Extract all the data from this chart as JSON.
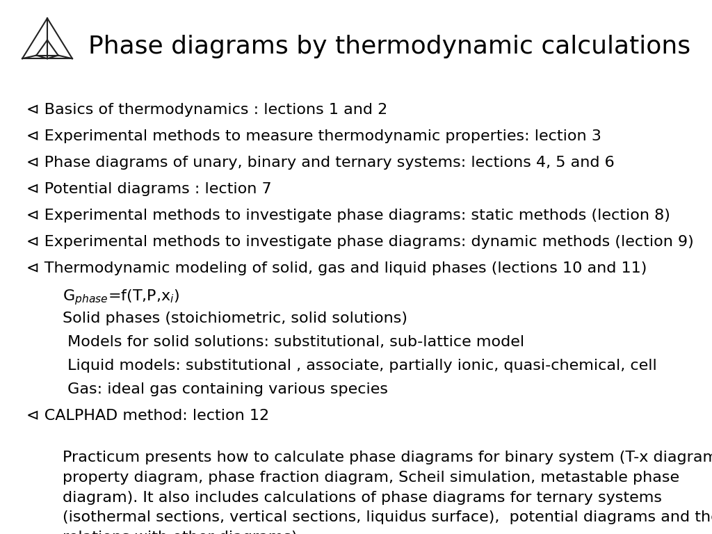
{
  "title": "Phase diagrams by thermodynamic calculations",
  "title_fontsize": 26,
  "background_color": "#ffffff",
  "text_color": "#000000",
  "bullet_items": [
    "Basics of thermodynamics : lections 1 and 2",
    "Experimental methods to measure thermodynamic properties: lection 3",
    "Phase diagrams of unary, binary and ternary systems: lections 4, 5 and 6",
    "Potential diagrams : lection 7",
    "Experimental methods to investigate phase diagrams: static methods (lection 8)",
    "Experimental methods to investigate phase diagrams: dynamic methods (lection 9)",
    "Thermodynamic modeling of solid, gas and liquid phases (lections 10 and 11)"
  ],
  "sub_items": [
    "G$_{phase}$=f(T,P,x$_i$)",
    "Solid phases (stoichiometric, solid solutions)",
    " Models for solid solutions: substitutional, sub-lattice model",
    " Liquid models: substitutional , associate, partially ionic, quasi-chemical, cell",
    " Gas: ideal gas containing various species"
  ],
  "final_bullet": "CALPHAD method: lection 12",
  "paragraph": "Practicum presents how to calculate phase diagrams for binary system (T-x diagrams,\nproperty diagram, phase fraction diagram, Scheil simulation, metastable phase\ndiagram). It also includes calculations of phase diagrams for ternary systems\n(isothermal sections, vertical sections, liquidus surface),  potential diagrams and their\nrelations with other diagrams)",
  "bullet_fontsize": 16,
  "sub_fontsize": 16,
  "para_fontsize": 16,
  "bullet_symbol": "⊲"
}
